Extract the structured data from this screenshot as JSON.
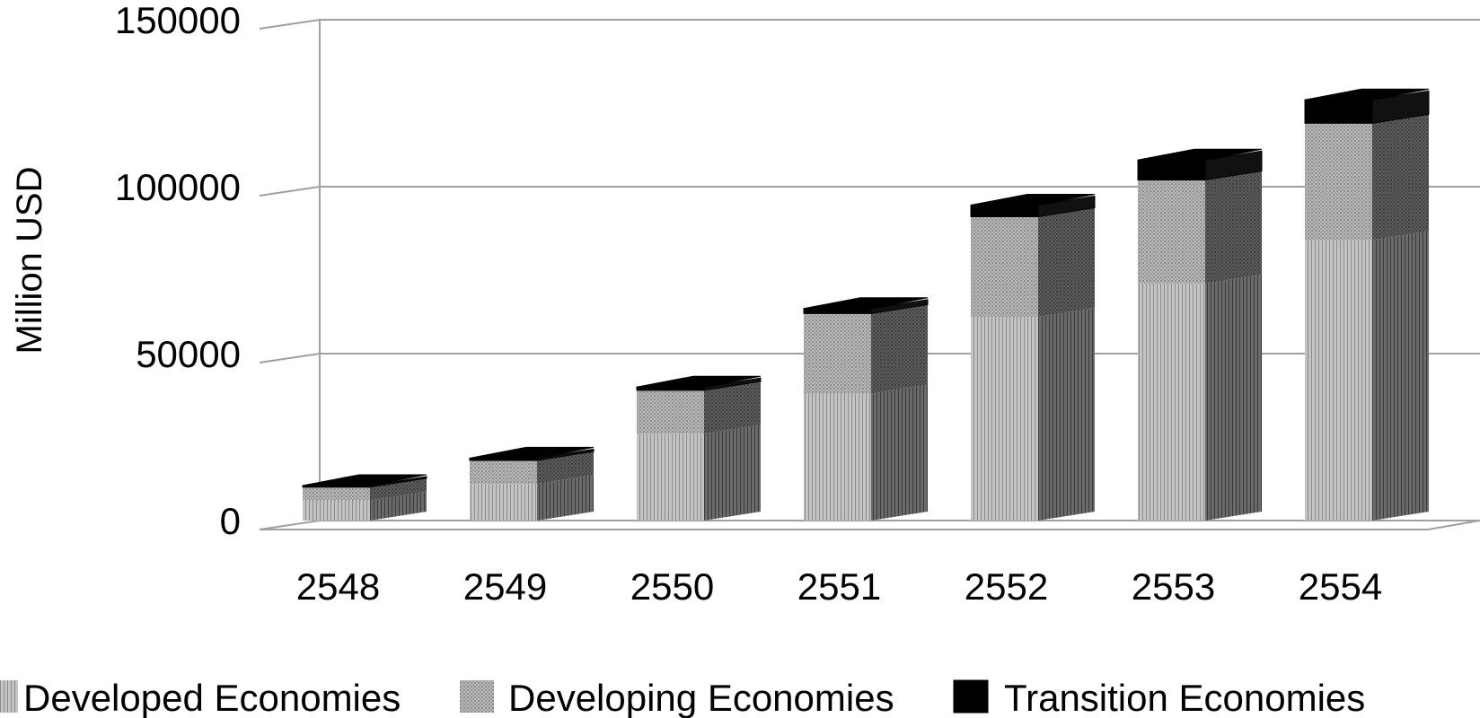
{
  "chart_data": {
    "type": "bar",
    "stacked": true,
    "three_d": true,
    "title": "",
    "xlabel": "",
    "ylabel": "Million USD",
    "ylim": [
      0,
      150000
    ],
    "yticks": [
      0,
      50000,
      100000,
      150000
    ],
    "ytick_labels": [
      "0",
      "50000",
      "100000",
      "150000"
    ],
    "grid": true,
    "legend_position": "bottom",
    "categories": [
      "2548",
      "2549",
      "2550",
      "2551",
      "2552",
      "2553",
      "2554"
    ],
    "series": [
      {
        "name": "Developed Economies",
        "values": [
          6000,
          11000,
          26000,
          38000,
          61000,
          71000,
          84000
        ],
        "color": "#bdbdbd"
      },
      {
        "name": "Developing Economies",
        "values": [
          4000,
          7000,
          13000,
          24000,
          30000,
          31000,
          35000
        ],
        "color": "#b0b0b0"
      },
      {
        "name": "Transition Economies",
        "values": [
          500,
          700,
          1000,
          1500,
          3500,
          6000,
          7000
        ],
        "color": "#000000"
      }
    ]
  }
}
